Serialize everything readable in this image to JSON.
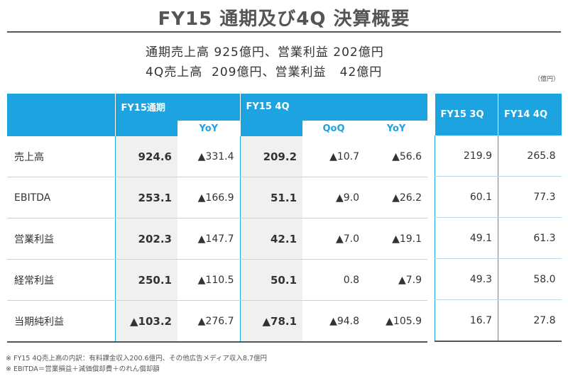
{
  "title": "FY15 通期及び4Q 決算概要",
  "summary": {
    "line1": "通期売上高 925億円、営業利益 202億円",
    "line2": "4Q売上高  209億円、営業利益   42億円"
  },
  "unit": "（億円）",
  "table_main": {
    "group_fy15": "FY15通期",
    "group_4q": "FY15 4Q",
    "sub_yoy": "YoY",
    "sub_qoq": "QoQ",
    "sub_yoy2": "YoY",
    "rows": [
      {
        "label": "売上高",
        "fy15": "924.6",
        "fy15_yoy": "▲331.4",
        "q4": "209.2",
        "q4_qoq": "▲10.7",
        "q4_yoy": "▲56.6"
      },
      {
        "label": "EBITDA",
        "fy15": "253.1",
        "fy15_yoy": "▲166.9",
        "q4": "51.1",
        "q4_qoq": "▲9.0",
        "q4_yoy": "▲26.2"
      },
      {
        "label": "営業利益",
        "fy15": "202.3",
        "fy15_yoy": "▲147.7",
        "q4": "42.1",
        "q4_qoq": "▲7.0",
        "q4_yoy": "▲19.1"
      },
      {
        "label": "経常利益",
        "fy15": "250.1",
        "fy15_yoy": "▲110.5",
        "q4": "50.1",
        "q4_qoq": "0.8",
        "q4_yoy": "▲7.9"
      },
      {
        "label": "当期純利益",
        "fy15": "▲103.2",
        "fy15_yoy": "▲276.7",
        "q4": "▲78.1",
        "q4_qoq": "▲94.8",
        "q4_yoy": "▲105.9"
      }
    ]
  },
  "table_side": {
    "col_fy15_3q": "FY15 3Q",
    "col_fy14_4q": "FY14 4Q",
    "rows": [
      {
        "fy15_3q": "219.9",
        "fy14_4q": "265.8"
      },
      {
        "fy15_3q": "60.1",
        "fy14_4q": "77.3"
      },
      {
        "fy15_3q": "49.1",
        "fy14_4q": "61.3"
      },
      {
        "fy15_3q": "49.3",
        "fy14_4q": "58.0"
      },
      {
        "fy15_3q": "16.7",
        "fy14_4q": "27.8"
      }
    ]
  },
  "notes": [
    "※ FY15 4Q売上高の内訳：有料課金収入200.6億円、その他広告メディア収入8.7億円",
    "※ EBITDA＝営業損益＋減価償却費＋のれん償却額"
  ],
  "colors": {
    "accent": "#1ea3e1",
    "title": "#555555"
  }
}
